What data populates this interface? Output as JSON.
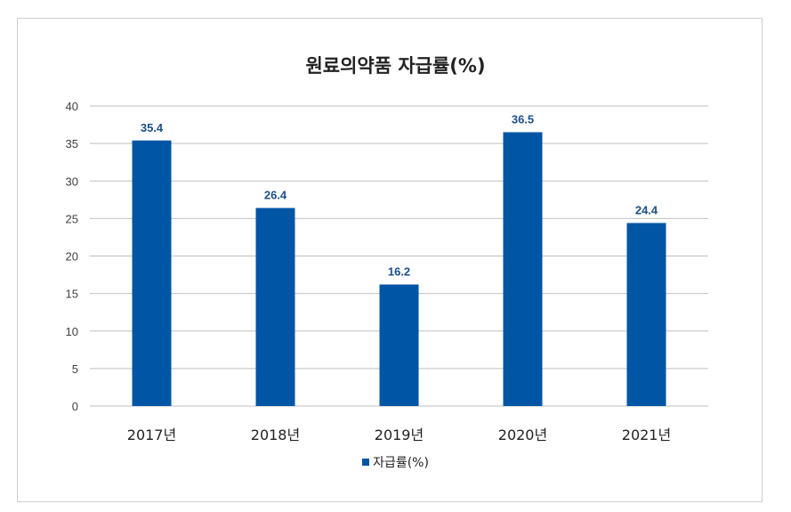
{
  "chart_data": {
    "type": "bar",
    "title": "원료의약품 자급률(%)",
    "categories": [
      "2017년",
      "2018년",
      "2019년",
      "2020년",
      "2021년"
    ],
    "series": [
      {
        "name": "자급률(%)",
        "values": [
          35.4,
          26.4,
          16.2,
          36.5,
          24.4
        ],
        "color": "#0055a5"
      }
    ],
    "data_labels": [
      "35.4",
      "26.4",
      "16.2",
      "36.5",
      "24.4"
    ],
    "ylim": [
      0,
      40
    ],
    "yticks": [
      0,
      5,
      10,
      15,
      20,
      25,
      30,
      35,
      40
    ],
    "grid": true,
    "legend": "bottom",
    "colors": {
      "bar": "#0055a5",
      "data_label": "#1b4f8a",
      "grid": "#bfbfbf",
      "axis_text": "#404040"
    }
  }
}
